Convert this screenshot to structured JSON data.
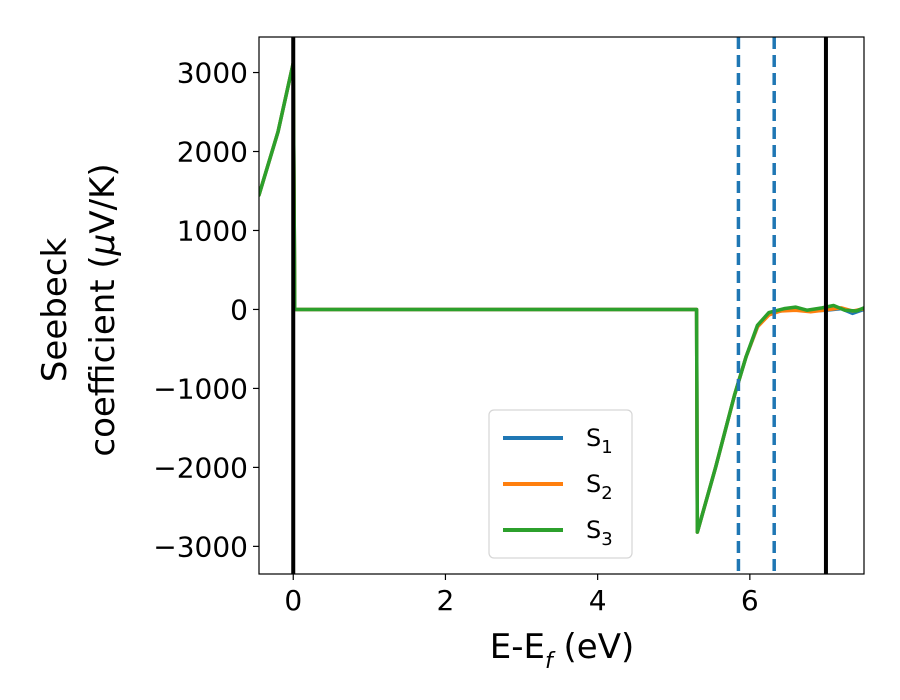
{
  "chart_data": {
    "type": "line",
    "title": "",
    "xlabel": "E-E_f (eV)",
    "ylabel": "Seebeck coefficient (μV/K)",
    "xlim": [
      -0.45,
      7.5
    ],
    "ylim": [
      -3350,
      3450
    ],
    "xticks": [
      0,
      2,
      4,
      6
    ],
    "yticks": [
      3000,
      2000,
      1000,
      0,
      -1000,
      -2000,
      -3000
    ],
    "grid": false,
    "legend_position": "lower-center",
    "vertical_lines": [
      {
        "x": 0,
        "style": "solid",
        "color": "#000000"
      },
      {
        "x": 7.0,
        "style": "solid",
        "color": "#000000"
      },
      {
        "x": 5.85,
        "style": "dashed",
        "color": "#1f77b4"
      },
      {
        "x": 6.32,
        "style": "dashed",
        "color": "#1f77b4"
      }
    ],
    "series": [
      {
        "name": "S1",
        "color": "#1f77b4",
        "points": [
          [
            -0.45,
            1450
          ],
          [
            -0.2,
            2250
          ],
          [
            0.0,
            3120
          ],
          [
            0.02,
            0
          ],
          [
            5.3,
            0
          ],
          [
            5.31,
            -2820
          ],
          [
            5.55,
            -2000
          ],
          [
            5.8,
            -1080
          ],
          [
            5.95,
            -600
          ],
          [
            6.1,
            -220
          ],
          [
            6.25,
            -60
          ],
          [
            6.4,
            -20
          ],
          [
            6.6,
            10
          ],
          [
            6.8,
            -20
          ],
          [
            7.0,
            -10
          ],
          [
            7.2,
            10
          ],
          [
            7.35,
            -50
          ],
          [
            7.5,
            0
          ]
        ]
      },
      {
        "name": "S2",
        "color": "#ff7f0e",
        "points": [
          [
            -0.45,
            1450
          ],
          [
            -0.2,
            2250
          ],
          [
            0.0,
            3120
          ],
          [
            0.02,
            0
          ],
          [
            5.3,
            0
          ],
          [
            5.31,
            -2820
          ],
          [
            5.55,
            -2000
          ],
          [
            5.8,
            -1080
          ],
          [
            5.95,
            -600
          ],
          [
            6.1,
            -220
          ],
          [
            6.25,
            -70
          ],
          [
            6.4,
            -20
          ],
          [
            6.6,
            -10
          ],
          [
            6.8,
            -30
          ],
          [
            7.0,
            -5
          ],
          [
            7.2,
            20
          ],
          [
            7.35,
            -20
          ],
          [
            7.5,
            10
          ]
        ]
      },
      {
        "name": "S3",
        "color": "#2ca02c",
        "points": [
          [
            -0.45,
            1450
          ],
          [
            -0.2,
            2250
          ],
          [
            0.0,
            3120
          ],
          [
            0.02,
            0
          ],
          [
            5.3,
            0
          ],
          [
            5.31,
            -2820
          ],
          [
            5.55,
            -2000
          ],
          [
            5.8,
            -1080
          ],
          [
            5.95,
            -600
          ],
          [
            6.1,
            -200
          ],
          [
            6.25,
            -40
          ],
          [
            6.45,
            10
          ],
          [
            6.6,
            30
          ],
          [
            6.75,
            -10
          ],
          [
            6.95,
            20
          ],
          [
            7.1,
            50
          ],
          [
            7.25,
            -10
          ],
          [
            7.4,
            -20
          ],
          [
            7.5,
            20
          ]
        ]
      }
    ],
    "legend": {
      "entries": [
        {
          "base": "S",
          "sub": "1"
        },
        {
          "base": "S",
          "sub": "2"
        },
        {
          "base": "S",
          "sub": "3"
        }
      ]
    },
    "axis_text": {
      "xlabel_main": "E-E",
      "xlabel_sub": "f",
      "xlabel_tail": " (eV)",
      "ylabel_line1": "Seebeck",
      "ylabel_line2_a": "coefficient  (",
      "ylabel_line2_mu": "μ",
      "ylabel_line2_b": "V/K)"
    }
  }
}
